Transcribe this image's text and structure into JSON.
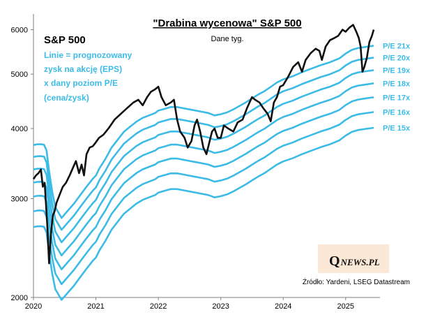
{
  "chart_data": {
    "type": "line",
    "title": "\"Drabina  wycenowa\"  S&P 500",
    "subtitle": "Dane tyg.",
    "y_scale": "log",
    "ylim": [
      2000,
      6400
    ],
    "y_ticks": [
      2000,
      3000,
      4000,
      5000,
      6000
    ],
    "x_ticks": [
      "2020",
      "2021",
      "2022",
      "2023",
      "2024",
      "2025"
    ],
    "xlim": [
      2020.0,
      2025.55
    ],
    "note_title": "S&P 500",
    "note_lines": [
      "Linie = prognozowany",
      "zysk na akcję (EPS)",
      "x dany poziom P/E",
      "(cena/zysk)"
    ],
    "source": "Źródło: Yardeni, LSEG Datastream",
    "logo": {
      "q": "Q",
      "rest": "NEWS.PL"
    },
    "colors": {
      "price": "#111111",
      "pe": "#3cbbe6",
      "logo_bg": "#fbe8d6"
    },
    "eps": {
      "x": [
        2020.0,
        2020.06,
        2020.12,
        2020.17,
        2020.21,
        2020.25,
        2020.3,
        2020.35,
        2020.45,
        2020.55,
        2020.65,
        2020.75,
        2020.85,
        2020.95,
        2021.0,
        2021.06,
        2021.15,
        2021.25,
        2021.35,
        2021.45,
        2021.55,
        2021.65,
        2021.75,
        2021.85,
        2021.95,
        2022.0,
        2022.1,
        2022.2,
        2022.3,
        2022.4,
        2022.5,
        2022.6,
        2022.7,
        2022.8,
        2022.9,
        2023.0,
        2023.1,
        2023.2,
        2023.3,
        2023.4,
        2023.5,
        2023.6,
        2023.7,
        2023.8,
        2023.9,
        2024.0,
        2024.15,
        2024.3,
        2024.45,
        2024.6,
        2024.75,
        2024.9,
        2025.0,
        2025.1,
        2025.2,
        2025.3,
        2025.4,
        2025.45
      ],
      "values": [
        178,
        178.5,
        178.6,
        178.2,
        174,
        160,
        147,
        138,
        132,
        136,
        140,
        145,
        150,
        155,
        157,
        162,
        168,
        176,
        182,
        188,
        192,
        196,
        199,
        201,
        203,
        205,
        206.5,
        208,
        208,
        207,
        206,
        205,
        204,
        203,
        201,
        202,
        203.5,
        206,
        209,
        212,
        215.5,
        219,
        222,
        226,
        230,
        233,
        236,
        240,
        243.5,
        247,
        250,
        254,
        259,
        263,
        265,
        266,
        267,
        267.5
      ]
    },
    "series": [
      {
        "name": "S&P 500",
        "x": [
          2020.0,
          2020.04,
          2020.08,
          2020.12,
          2020.15,
          2020.18,
          2020.22,
          2020.25,
          2020.28,
          2020.31,
          2020.34,
          2020.37,
          2020.42,
          2020.47,
          2020.52,
          2020.58,
          2020.63,
          2020.68,
          2020.73,
          2020.77,
          2020.81,
          2020.85,
          2020.9,
          2020.95,
          2021.0,
          2021.05,
          2021.12,
          2021.2,
          2021.3,
          2021.4,
          2021.5,
          2021.6,
          2021.68,
          2021.75,
          2021.82,
          2021.88,
          2021.95,
          2022.0,
          2022.05,
          2022.12,
          2022.2,
          2022.25,
          2022.3,
          2022.35,
          2022.42,
          2022.47,
          2022.53,
          2022.58,
          2022.62,
          2022.67,
          2022.72,
          2022.77,
          2022.81,
          2022.86,
          2022.9,
          2022.95,
          2023.0,
          2023.05,
          2023.12,
          2023.2,
          2023.27,
          2023.35,
          2023.42,
          2023.5,
          2023.55,
          2023.62,
          2023.68,
          2023.75,
          2023.8,
          2023.85,
          2023.9,
          2023.95,
          2024.0,
          2024.08,
          2024.16,
          2024.24,
          2024.3,
          2024.36,
          2024.44,
          2024.52,
          2024.58,
          2024.62,
          2024.68,
          2024.75,
          2024.82,
          2024.88,
          2024.95,
          2025.0,
          2025.06,
          2025.12,
          2025.17,
          2025.21,
          2025.24,
          2025.27,
          2025.3,
          2025.34,
          2025.38,
          2025.42,
          2025.45
        ],
        "values": [
          3250,
          3300,
          3330,
          3380,
          3150,
          3200,
          2700,
          2300,
          2600,
          2800,
          2850,
          2950,
          3050,
          3150,
          3200,
          3300,
          3400,
          3500,
          3330,
          3450,
          3300,
          3600,
          3700,
          3720,
          3780,
          3850,
          3900,
          4000,
          4150,
          4250,
          4350,
          4450,
          4500,
          4400,
          4550,
          4650,
          4700,
          4750,
          4550,
          4400,
          4450,
          4500,
          4150,
          3950,
          3850,
          3700,
          3800,
          4050,
          4150,
          3950,
          3700,
          3600,
          3750,
          3950,
          4000,
          3850,
          3850,
          4050,
          4000,
          3950,
          4100,
          4150,
          4350,
          4550,
          4500,
          4450,
          4350,
          4250,
          4120,
          4450,
          4550,
          4750,
          4780,
          4950,
          5150,
          5250,
          5050,
          5300,
          5450,
          5550,
          5500,
          5300,
          5600,
          5750,
          5800,
          5850,
          6000,
          5950,
          6050,
          6120,
          5950,
          5800,
          5600,
          5050,
          5150,
          5350,
          5700,
          5850,
          6000
        ]
      }
    ],
    "pe_levels": [
      {
        "label": "P/E 21x",
        "multiple": 21
      },
      {
        "label": "P/E 20x",
        "multiple": 20
      },
      {
        "label": "P/E 19x",
        "multiple": 19
      },
      {
        "label": "P/E 18x",
        "multiple": 18
      },
      {
        "label": "P/E 17x",
        "multiple": 17
      },
      {
        "label": "P/E 16x",
        "multiple": 16
      },
      {
        "label": "P/E 15x",
        "multiple": 15
      }
    ]
  }
}
